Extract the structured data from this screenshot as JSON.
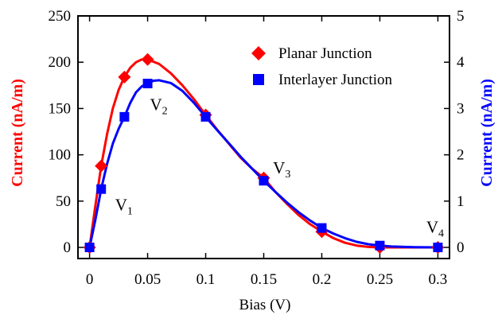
{
  "chart_data": {
    "type": "line",
    "xlabel": "Bias (V)",
    "ylabel_left": "Current (nA/m)",
    "ylabel_right": "Current (nA/m)",
    "xlim": [
      -0.01,
      0.31
    ],
    "ylim_left": [
      -12,
      250
    ],
    "ylim_right": [
      -0.24,
      5
    ],
    "x_ticks": [
      0,
      0.05,
      0.1,
      0.15,
      0.2,
      0.25,
      0.3
    ],
    "x_tick_labels": [
      "0",
      "0.05",
      "0.1",
      "0.15",
      "0.2",
      "0.25",
      "0.3"
    ],
    "y_left_ticks": [
      0,
      50,
      100,
      150,
      200,
      250
    ],
    "y_left_tick_labels": [
      "0",
      "50",
      "100",
      "150",
      "200",
      "250"
    ],
    "y_right_ticks": [
      0,
      1,
      2,
      3,
      4,
      5
    ],
    "y_right_tick_labels": [
      "0",
      "1",
      "2",
      "3",
      "4",
      "5"
    ],
    "legend_position": "top-right",
    "series": [
      {
        "name": "Planar Junction",
        "axis": "left",
        "marker": "diamond",
        "color": "#ff0000",
        "x": [
          0,
          0.01,
          0.03,
          0.05,
          0.1,
          0.15,
          0.2,
          0.25,
          0.3
        ],
        "y": [
          0,
          88,
          184,
          203,
          143,
          75,
          17,
          0,
          0
        ],
        "curve_x": [
          0,
          0.005,
          0.01,
          0.015,
          0.02,
          0.025,
          0.03,
          0.035,
          0.04,
          0.045,
          0.05,
          0.06,
          0.07,
          0.08,
          0.09,
          0.1,
          0.11,
          0.12,
          0.13,
          0.14,
          0.15,
          0.16,
          0.17,
          0.18,
          0.19,
          0.2,
          0.21,
          0.22,
          0.23,
          0.24,
          0.25,
          0.26,
          0.28,
          0.3
        ],
        "curve_y": [
          0,
          45,
          88,
          122,
          150,
          170,
          184,
          194,
          200,
          203,
          203,
          198,
          188,
          175,
          160,
          143,
          127,
          112,
          97,
          85,
          75,
          60,
          47,
          35,
          25,
          17,
          10,
          5,
          2,
          0.5,
          0,
          0,
          0,
          0
        ]
      },
      {
        "name": "Interlayer Junction",
        "axis": "right",
        "marker": "square",
        "color": "#0000ff",
        "x": [
          0,
          0.01,
          0.03,
          0.05,
          0.1,
          0.15,
          0.2,
          0.25,
          0.3
        ],
        "y": [
          0,
          1.26,
          2.82,
          3.54,
          2.82,
          1.44,
          0.42,
          0.04,
          0
        ],
        "curve_x": [
          0,
          0.005,
          0.01,
          0.015,
          0.02,
          0.025,
          0.03,
          0.035,
          0.04,
          0.045,
          0.05,
          0.055,
          0.06,
          0.07,
          0.08,
          0.09,
          0.1,
          0.11,
          0.12,
          0.13,
          0.14,
          0.15,
          0.16,
          0.17,
          0.18,
          0.19,
          0.2,
          0.21,
          0.22,
          0.23,
          0.24,
          0.25,
          0.26,
          0.28,
          0.3
        ],
        "curve_y": [
          0,
          0.6,
          1.26,
          1.8,
          2.24,
          2.56,
          2.82,
          3.12,
          3.35,
          3.48,
          3.54,
          3.6,
          3.61,
          3.55,
          3.38,
          3.12,
          2.82,
          2.53,
          2.25,
          1.96,
          1.7,
          1.44,
          1.2,
          0.97,
          0.76,
          0.58,
          0.42,
          0.3,
          0.2,
          0.12,
          0.07,
          0.04,
          0.02,
          0.005,
          0
        ]
      }
    ],
    "annotations": [
      {
        "base": "V",
        "sub": "1",
        "x": 0.022,
        "y_left": 40
      },
      {
        "base": "V",
        "sub": "2",
        "x": 0.052,
        "y_left": 148
      },
      {
        "base": "V",
        "sub": "3",
        "x": 0.158,
        "y_left": 80
      },
      {
        "base": "V",
        "sub": "4",
        "x": 0.29,
        "y_left": 16
      }
    ]
  }
}
